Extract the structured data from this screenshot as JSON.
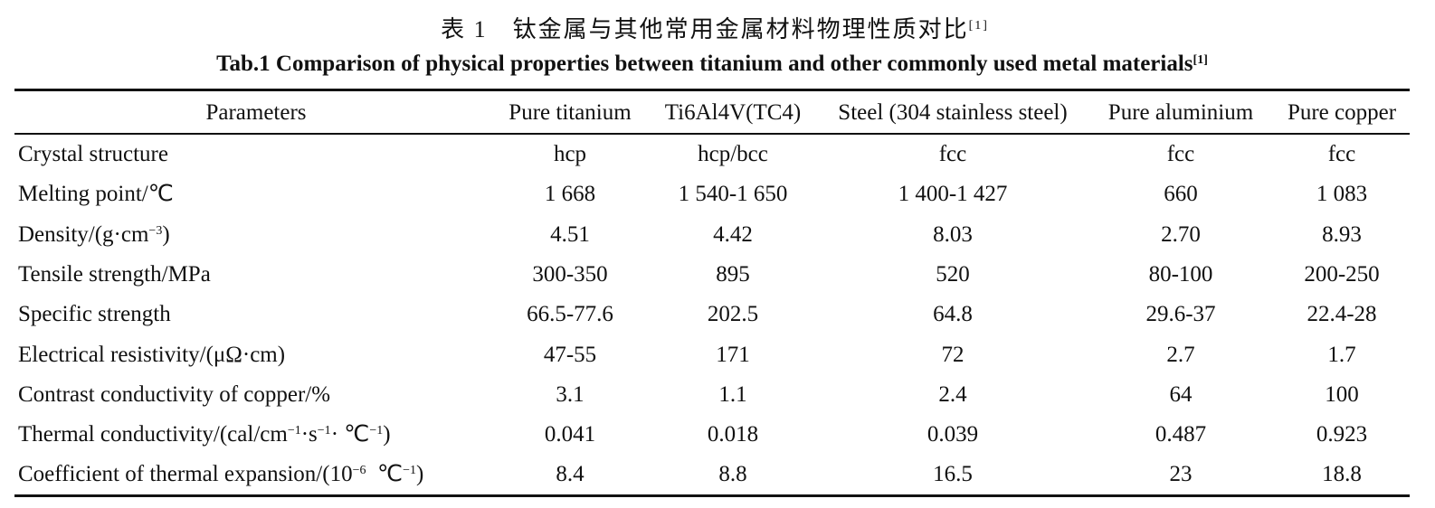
{
  "title": {
    "zh": "表 1　钛金属与其他常用金属材料物理性质对比",
    "zh_ref": "[1]",
    "en": "Tab.1 Comparison of physical properties between titanium and other commonly used metal materials",
    "en_ref": "[1]"
  },
  "table": {
    "header": [
      "Parameters",
      "Pure titanium",
      "Ti6Al4V(TC4)",
      "Steel (304 stainless steel)",
      "Pure aluminium",
      "Pure copper"
    ],
    "rows": [
      {
        "label": [
          {
            "text": "Crystal structure"
          }
        ],
        "cells": [
          "hcp",
          "hcp/bcc",
          "fcc",
          "fcc",
          "fcc"
        ]
      },
      {
        "label": [
          {
            "text": "Melting point/℃"
          }
        ],
        "cells": [
          "1 668",
          "1 540-1 650",
          "1 400-1 427",
          "660",
          "1 083"
        ]
      },
      {
        "label": [
          {
            "text": "Density/(g·cm"
          },
          {
            "sup": "−3"
          },
          {
            "text": ")"
          }
        ],
        "cells": [
          "4.51",
          "4.42",
          "8.03",
          "2.70",
          "8.93"
        ]
      },
      {
        "label": [
          {
            "text": "Tensile strength/MPa"
          }
        ],
        "cells": [
          "300-350",
          "895",
          "520",
          "80-100",
          "200-250"
        ]
      },
      {
        "label": [
          {
            "text": "Specific strength"
          }
        ],
        "cells": [
          "66.5-77.6",
          "202.5",
          "64.8",
          "29.6-37",
          "22.4-28"
        ]
      },
      {
        "label": [
          {
            "text": "Electrical resistivity/(μΩ·cm)"
          }
        ],
        "cells": [
          "47-55",
          "171",
          "72",
          "2.7",
          "1.7"
        ]
      },
      {
        "label": [
          {
            "text": "Contrast conductivity of copper/%"
          }
        ],
        "cells": [
          "3.1",
          "1.1",
          "2.4",
          "64",
          "100"
        ]
      },
      {
        "label": [
          {
            "text": "Thermal conductivity/(cal/cm"
          },
          {
            "sup": "−1"
          },
          {
            "text": "·s"
          },
          {
            "sup": "−1"
          },
          {
            "text": "· ℃"
          },
          {
            "sup": "−1"
          },
          {
            "text": ")"
          }
        ],
        "cells": [
          "0.041",
          "0.018",
          "0.039",
          "0.487",
          "0.923"
        ]
      },
      {
        "label": [
          {
            "text": "Coefficient of thermal expansion/(10"
          },
          {
            "sup": "−6"
          },
          {
            "text": "  ℃"
          },
          {
            "sup": "−1"
          },
          {
            "text": ")"
          }
        ],
        "cells": [
          "8.4",
          "8.8",
          "16.5",
          "23",
          "18.8"
        ]
      }
    ]
  }
}
